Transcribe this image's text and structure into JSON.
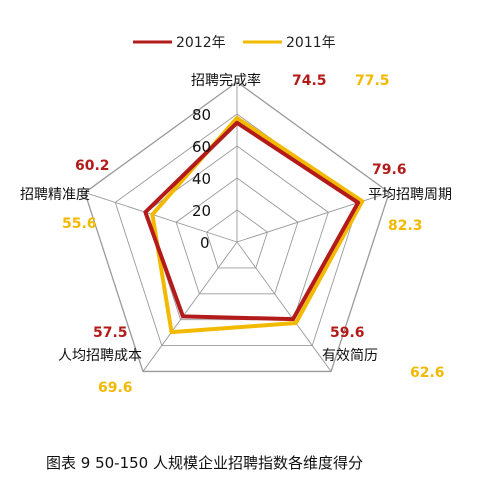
{
  "chart_data": {
    "type": "radar",
    "categories": [
      "招聘完成率",
      "平均招聘周期",
      "有效简历",
      "人均招聘成本",
      "招聘精准度"
    ],
    "ticks": [
      "0",
      "20",
      "40",
      "60",
      "80"
    ],
    "rlim": [
      0,
      100
    ],
    "series": [
      {
        "name": "2012年",
        "color": "#b31b1b",
        "values": [
          74.5,
          79.6,
          59.6,
          57.5,
          60.2
        ],
        "labels": [
          "74.5",
          "79.6",
          "59.6",
          "57.5",
          "60.2"
        ]
      },
      {
        "name": "2011年",
        "color": "#f2b900",
        "values": [
          77.5,
          82.3,
          62.6,
          69.6,
          55.6
        ],
        "labels": [
          "77.5",
          "82.3",
          "62.6",
          "69.6",
          "55.6"
        ]
      }
    ],
    "legend_position": "top",
    "caption": "图表 9    50-150 人规模企业招聘指数各维度得分"
  }
}
